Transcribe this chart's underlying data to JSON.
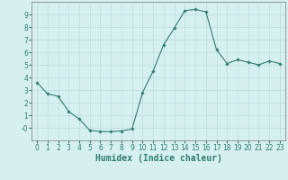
{
  "x": [
    0,
    1,
    2,
    3,
    4,
    5,
    6,
    7,
    8,
    9,
    10,
    11,
    12,
    13,
    14,
    15,
    16,
    17,
    18,
    19,
    20,
    21,
    22,
    23
  ],
  "y": [
    3.6,
    2.7,
    2.5,
    1.3,
    0.7,
    -0.2,
    -0.3,
    -0.3,
    -0.25,
    -0.1,
    2.8,
    4.5,
    6.6,
    7.9,
    9.3,
    9.4,
    9.2,
    6.2,
    5.1,
    5.4,
    5.2,
    5.0,
    5.3,
    5.1
  ],
  "line_color": "#2e7d6e",
  "marker": "D",
  "marker_size": 1.8,
  "bg_color": "#d6f0f0",
  "grid_color": "#c0dede",
  "xlabel": "Humidex (Indice chaleur)",
  "ylim": [
    -1,
    10
  ],
  "xlim": [
    -0.5,
    23.5
  ],
  "yticks": [
    0,
    1,
    2,
    3,
    4,
    5,
    6,
    7,
    8,
    9
  ],
  "ytick_labels": [
    "-0",
    "1",
    "2",
    "3",
    "4",
    "5",
    "6",
    "7",
    "8",
    "9"
  ],
  "xticks": [
    0,
    1,
    2,
    3,
    4,
    5,
    6,
    7,
    8,
    9,
    10,
    11,
    12,
    13,
    14,
    15,
    16,
    17,
    18,
    19,
    20,
    21,
    22,
    23
  ],
  "tick_label_fontsize": 5.5,
  "xlabel_fontsize": 7.0,
  "line_width": 0.8
}
